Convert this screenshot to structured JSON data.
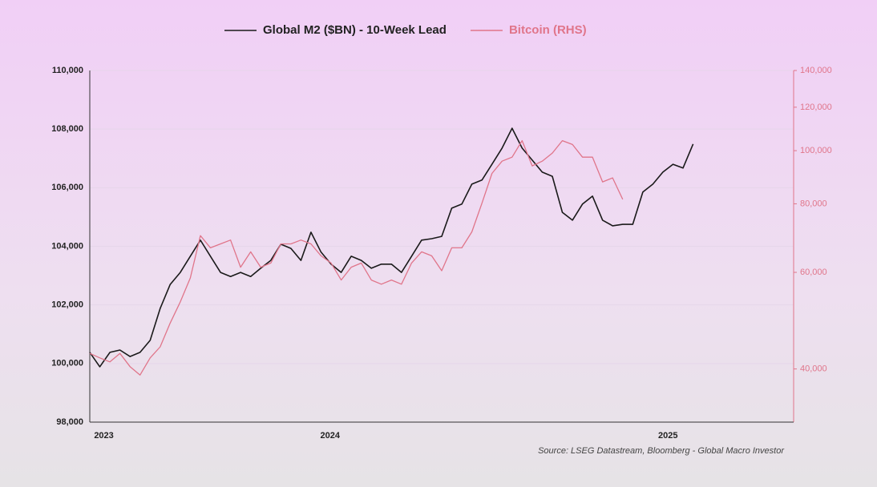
{
  "chart_data": {
    "type": "line",
    "series": [
      {
        "name": "Global M2 ($BN) - 10-Week Lead",
        "color": "#1a1a1a",
        "axis": "y",
        "values": [
          100380,
          99890,
          100380,
          100460,
          100240,
          100380,
          100790,
          101880,
          102700,
          103110,
          103660,
          104210,
          103660,
          103110,
          102970,
          103110,
          102970,
          103250,
          103520,
          104070,
          103930,
          103520,
          104480,
          103800,
          103390,
          103110,
          103660,
          103520,
          103250,
          103390,
          103390,
          103110,
          103660,
          104210,
          104260,
          104340,
          105300,
          105440,
          106120,
          106260,
          106800,
          107350,
          108030,
          107350,
          106940,
          106530,
          106390,
          105160,
          104890,
          105440,
          105710,
          104890,
          104700,
          104750,
          104750,
          105850,
          106120,
          106530,
          106800,
          106670,
          107490
        ]
      },
      {
        "name": "Bitcoin (RHS)",
        "color": "#e0758a",
        "axis": "y2",
        "values": [
          42700,
          41900,
          41200,
          42700,
          40400,
          39000,
          41900,
          43900,
          48500,
          53000,
          58600,
          70000,
          66500,
          67600,
          68700,
          61300,
          65400,
          61300,
          62400,
          67600,
          67600,
          68700,
          67600,
          64300,
          62400,
          58100,
          61300,
          62400,
          58100,
          57100,
          58100,
          57100,
          62400,
          65400,
          64300,
          60400,
          66500,
          66500,
          71100,
          80200,
          90900,
          95700,
          97300,
          104300,
          93800,
          95700,
          99000,
          104300,
          102600,
          97300,
          97300,
          87700,
          89200,
          81500,
          null,
          null,
          null,
          null,
          null,
          null,
          null
        ]
      }
    ],
    "xlim": [
      0,
      70
    ],
    "xticks": [
      {
        "value": 1.4,
        "label": "2023"
      },
      {
        "value": 23.9,
        "label": "2024"
      },
      {
        "value": 57.5,
        "label": "2025"
      }
    ],
    "ylim": [
      98000,
      110000
    ],
    "yticks": [
      {
        "value": 98000,
        "label": "98,000"
      },
      {
        "value": 100000,
        "label": "100,000"
      },
      {
        "value": 102000,
        "label": "102,000"
      },
      {
        "value": 104000,
        "label": "104,000"
      },
      {
        "value": 106000,
        "label": "106,000"
      },
      {
        "value": 108000,
        "label": "108,000"
      },
      {
        "value": 110000,
        "label": "110,000"
      }
    ],
    "y2lim": [
      32000,
      140000
    ],
    "y2scale": "log",
    "y2ticks": [
      {
        "value": 40000,
        "label": "40,000"
      },
      {
        "value": 60000,
        "label": "60,000"
      },
      {
        "value": 80000,
        "label": "80,000"
      },
      {
        "value": 100000,
        "label": "100,000"
      },
      {
        "value": 120000,
        "label": "120,000"
      },
      {
        "value": 140000,
        "label": "140,000"
      }
    ],
    "grid": true,
    "legend": "top",
    "source": "Source: LSEG Datastream, Bloomberg - Global Macro Investor"
  }
}
